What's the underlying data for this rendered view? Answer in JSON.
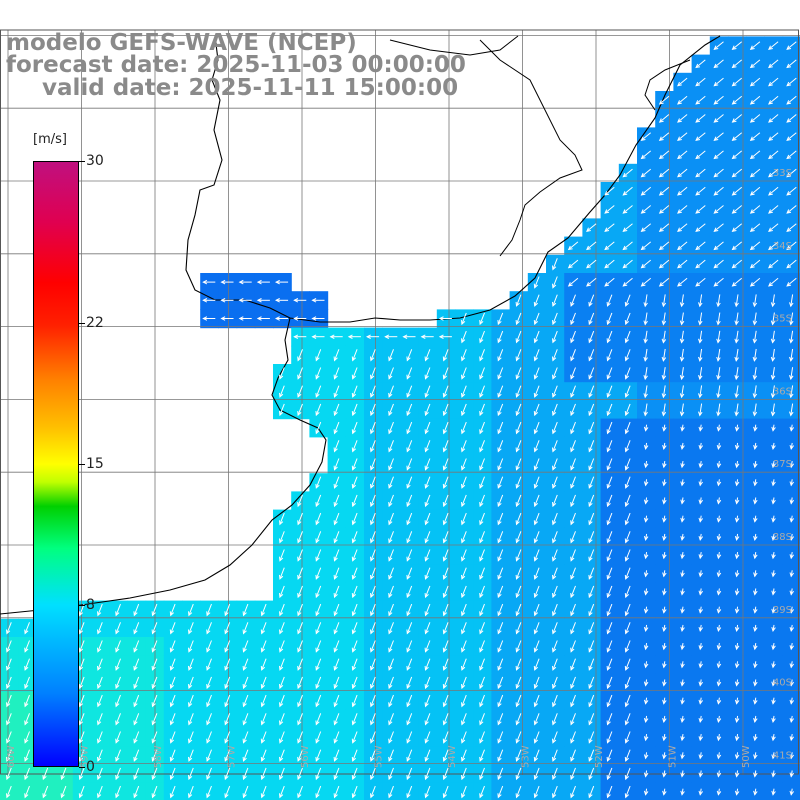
{
  "title": {
    "line1": "modelo GEFS-WAVE (NCEP)",
    "line2": "forecast date: 2025-11-03 00:00:00",
    "line3": "valid date: 2025-11-11 15:00:00"
  },
  "colorbar": {
    "units": "[m/s]",
    "min": 0,
    "max": 30,
    "ticks": [
      {
        "label": "30",
        "value": 30
      },
      {
        "label": "22",
        "value": 22
      },
      {
        "label": "15",
        "value": 15
      },
      {
        "label": "8",
        "value": 8
      },
      {
        "label": "0",
        "value": 0
      }
    ]
  },
  "map": {
    "lat_labels": [
      "33S",
      "34S",
      "35S",
      "36S",
      "37S",
      "38S",
      "39S",
      "40S",
      "41S"
    ],
    "lon_labels": [
      "60W",
      "59W",
      "58W",
      "57W",
      "56W",
      "55W",
      "54W",
      "53W",
      "52W",
      "51W",
      "50W"
    ],
    "land_color": "#ffffff",
    "grid_color": "#777777",
    "coast_color": "#000000",
    "arrow_color": "#ffffff"
  }
}
